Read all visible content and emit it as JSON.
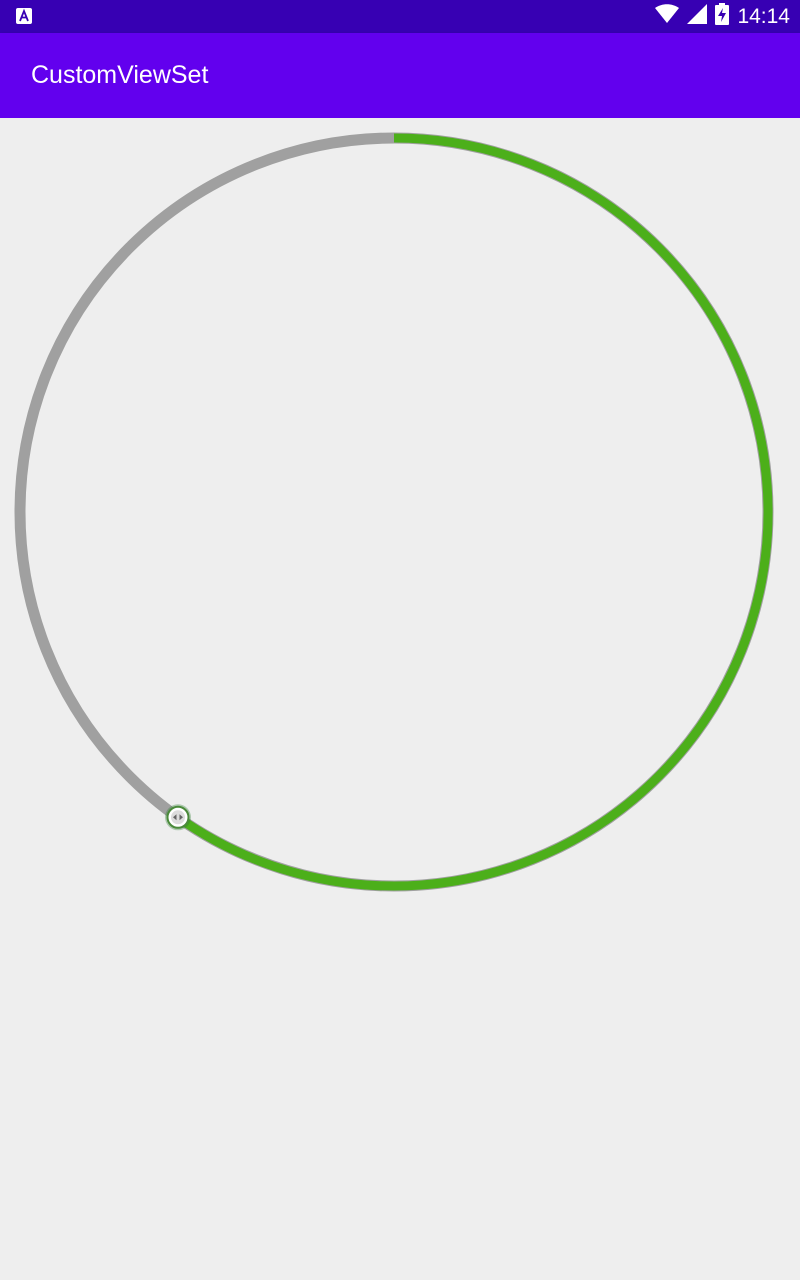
{
  "status_bar": {
    "time": "14:14",
    "left_icon": "accessibility-a-icon",
    "icons": [
      "wifi-icon",
      "cell-signal-icon",
      "battery-charging-icon"
    ]
  },
  "app_bar": {
    "title": "CustomViewSet"
  },
  "circular_seekbar": {
    "progress_fraction": 0.598,
    "start_position": "top",
    "direction": "clockwise",
    "track_color": "#a0a0a0",
    "progress_color": "#4caf1a",
    "thumb_icon": "left-right-arrows-icon"
  },
  "colors": {
    "status_bar": "#3700b3",
    "app_bar": "#6200ee",
    "background": "#eeeeee"
  }
}
